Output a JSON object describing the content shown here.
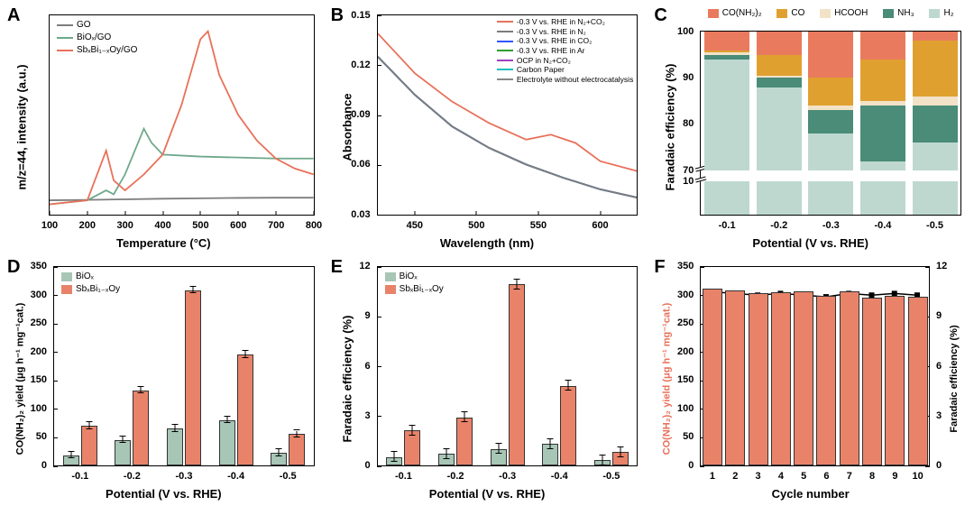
{
  "colors": {
    "go_grey": "#7d7d7d",
    "biox_green": "#6fa88b",
    "sbbi_red": "#e8715a",
    "co2_blue": "#3355ff",
    "ar_green": "#2ea02e",
    "ocp_purple": "#a040c0",
    "carbon_cyan": "#20c0c0",
    "elec_grey": "#888888",
    "urea_red": "#ea7a5e",
    "co_gold": "#e0a030",
    "hcooh_beige": "#f2e2c8",
    "nh3_teal": "#4a8c77",
    "h2_pale": "#bed8d0",
    "biox_bar": "#a8c6b6",
    "sbbi_bar": "#e8836a",
    "line_black": "#000000",
    "background": "#ffffff"
  },
  "A": {
    "label": "A",
    "xlabel": "Temperature (°C)",
    "ylabel": "m/z=44, intensity (a.u.)",
    "xlim": [
      100,
      800
    ],
    "xticks": [
      100,
      200,
      300,
      400,
      500,
      600,
      700,
      800
    ],
    "legend": [
      {
        "label": "GO",
        "color": "#7d7d7d"
      },
      {
        "label": "BiOₓ/GO",
        "color": "#6fa88b"
      },
      {
        "label": "SbₓBi₁₋ₓOy/GO",
        "color": "#e8715a"
      }
    ],
    "series": {
      "go": [
        [
          100,
          0.07
        ],
        [
          200,
          0.072
        ],
        [
          300,
          0.075
        ],
        [
          400,
          0.078
        ],
        [
          500,
          0.08
        ],
        [
          600,
          0.082
        ],
        [
          700,
          0.083
        ],
        [
          800,
          0.083
        ]
      ],
      "biox": [
        [
          100,
          0.05
        ],
        [
          200,
          0.07
        ],
        [
          250,
          0.12
        ],
        [
          270,
          0.1
        ],
        [
          300,
          0.2
        ],
        [
          350,
          0.43
        ],
        [
          370,
          0.36
        ],
        [
          400,
          0.3
        ],
        [
          500,
          0.29
        ],
        [
          600,
          0.285
        ],
        [
          700,
          0.28
        ],
        [
          800,
          0.28
        ]
      ],
      "sbbi": [
        [
          100,
          0.05
        ],
        [
          200,
          0.07
        ],
        [
          250,
          0.32
        ],
        [
          270,
          0.17
        ],
        [
          300,
          0.12
        ],
        [
          350,
          0.2
        ],
        [
          400,
          0.3
        ],
        [
          450,
          0.55
        ],
        [
          500,
          0.88
        ],
        [
          520,
          0.92
        ],
        [
          550,
          0.7
        ],
        [
          600,
          0.5
        ],
        [
          650,
          0.37
        ],
        [
          700,
          0.28
        ],
        [
          750,
          0.23
        ],
        [
          800,
          0.2
        ]
      ]
    }
  },
  "B": {
    "label": "B",
    "xlabel": "Wavelength (nm)",
    "ylabel": "Absorbance",
    "xlim": [
      420,
      630
    ],
    "xticks": [
      450,
      500,
      550,
      600
    ],
    "ylim": [
      0.03,
      0.15
    ],
    "yticks": [
      0.03,
      0.06,
      0.09,
      0.12,
      0.15
    ],
    "legend": [
      {
        "label": "-0.3 V vs. RHE in N₂+CO₂",
        "color": "#e8715a"
      },
      {
        "label": "-0.3 V vs. RHE in N₂",
        "color": "#7d7d7d"
      },
      {
        "label": "-0.3 V vs. RHE in CO₂",
        "color": "#3355ff"
      },
      {
        "label": "-0.3 V vs. RHE in Ar",
        "color": "#2ea02e"
      },
      {
        "label": "OCP in N₂+CO₂",
        "color": "#a040c0"
      },
      {
        "label": "Carbon Paper",
        "color": "#20c0c0"
      },
      {
        "label": "Electrolyte without electrocatalysis",
        "color": "#888888"
      }
    ],
    "series": {
      "n2co2": [
        [
          420,
          0.139
        ],
        [
          450,
          0.115
        ],
        [
          480,
          0.098
        ],
        [
          510,
          0.085
        ],
        [
          540,
          0.075
        ],
        [
          560,
          0.078
        ],
        [
          580,
          0.073
        ],
        [
          600,
          0.062
        ],
        [
          630,
          0.056
        ]
      ],
      "baseline": [
        [
          420,
          0.125
        ],
        [
          450,
          0.102
        ],
        [
          480,
          0.083
        ],
        [
          510,
          0.07
        ],
        [
          540,
          0.06
        ],
        [
          570,
          0.052
        ],
        [
          600,
          0.045
        ],
        [
          630,
          0.04
        ]
      ]
    }
  },
  "C": {
    "label": "C",
    "xlabel": "Potential (V vs. RHE)",
    "ylabel": "Faradaic efficiency (%)",
    "categories": [
      "-0.1",
      "-0.2",
      "-0.3",
      "-0.4",
      "-0.5"
    ],
    "ylim_lower": [
      0,
      10
    ],
    "ylim_upper": [
      70,
      100
    ],
    "yticks_upper": [
      70,
      80,
      90,
      100
    ],
    "yticks_lower": [
      10
    ],
    "legend": [
      {
        "label": "CO(NH₂)₂",
        "color": "#ea7a5e"
      },
      {
        "label": "CO",
        "color": "#e0a030"
      },
      {
        "label": "HCOOH",
        "color": "#f2e2c8"
      },
      {
        "label": "NH₃",
        "color": "#4a8c77"
      },
      {
        "label": "H₂",
        "color": "#bed8d0"
      }
    ],
    "stacks": [
      {
        "x": "-0.1",
        "h2": 94,
        "nh3": 1,
        "hcooh": 0.5,
        "co": 0.5,
        "urea": 4
      },
      {
        "x": "-0.2",
        "h2": 88,
        "nh3": 2,
        "hcooh": 0.5,
        "co": 4.5,
        "urea": 5
      },
      {
        "x": "-0.3",
        "h2": 78,
        "nh3": 5,
        "hcooh": 1,
        "co": 6,
        "urea": 10
      },
      {
        "x": "-0.4",
        "h2": 72,
        "nh3": 12,
        "hcooh": 1,
        "co": 9,
        "urea": 6
      },
      {
        "x": "-0.5",
        "h2": 76,
        "nh3": 8,
        "hcooh": 2,
        "co": 12,
        "urea": 2
      }
    ]
  },
  "D": {
    "label": "D",
    "xlabel": "Potential (V vs. RHE)",
    "ylabel": "CO(NH₂)₂ yield (μg h⁻¹ mg⁻¹cat.)",
    "categories": [
      "-0.1",
      "-0.2",
      "-0.3",
      "-0.4",
      "-0.5"
    ],
    "ylim": [
      0,
      350
    ],
    "yticks": [
      0,
      50,
      100,
      150,
      200,
      250,
      300,
      350
    ],
    "legend": [
      {
        "label": "BiOₓ",
        "color": "#a8c6b6"
      },
      {
        "label": "SbₓBi₁₋ₓOy",
        "color": "#e8836a"
      }
    ],
    "biox": [
      18,
      45,
      65,
      80,
      22
    ],
    "sbbi": [
      70,
      132,
      308,
      195,
      55
    ],
    "err": 6
  },
  "E": {
    "label": "E",
    "xlabel": "Potential (V vs. RHE)",
    "ylabel": "Faradaic efficiency (%)",
    "categories": [
      "-0.1",
      "-0.2",
      "-0.3",
      "-0.4",
      "-0.5"
    ],
    "ylim": [
      0,
      12
    ],
    "yticks": [
      0,
      3,
      6,
      9,
      12
    ],
    "legend": [
      {
        "label": "BiOₓ",
        "color": "#a8c6b6"
      },
      {
        "label": "SbₓBi₁₋ₓOy",
        "color": "#e8836a"
      }
    ],
    "biox": [
      0.5,
      0.7,
      1.0,
      1.3,
      0.3
    ],
    "sbbi": [
      2.1,
      2.9,
      10.9,
      4.8,
      0.8
    ],
    "err": 0.3
  },
  "F": {
    "label": "F",
    "xlabel": "Cycle number",
    "ylabel_left": "CO(NH₂)₂ yield (μg h⁻¹ mg⁻¹cat.)",
    "ylabel_right": "Faradaic efficiency (%)",
    "ylabel_left_color": "#e8715a",
    "categories": [
      1,
      2,
      3,
      4,
      5,
      6,
      7,
      8,
      9,
      10
    ],
    "ylim": [
      0,
      350
    ],
    "yticks": [
      0,
      50,
      100,
      150,
      200,
      250,
      300,
      350
    ],
    "ylim_r": [
      0,
      12
    ],
    "yticks_r": [
      0,
      3,
      6,
      9,
      12
    ],
    "bars": [
      310,
      308,
      302,
      304,
      306,
      298,
      305,
      295,
      298,
      296
    ],
    "fe": [
      10.5,
      10.4,
      10.3,
      10.4,
      10.3,
      10.2,
      10.4,
      10.3,
      10.4,
      10.3
    ]
  }
}
